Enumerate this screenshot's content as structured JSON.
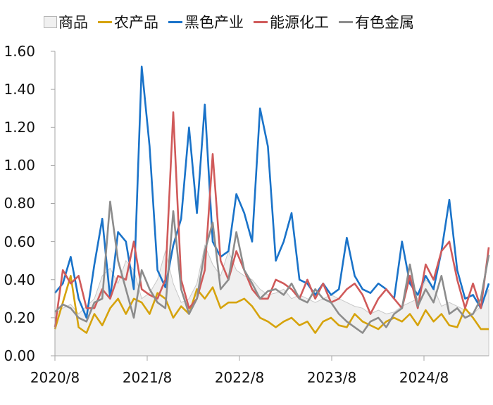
{
  "chart_data": {
    "type": "line",
    "title": "",
    "xlabel": "",
    "ylabel": "",
    "ylim": [
      0,
      1.6
    ],
    "yticks": [
      "0.00",
      "0.20",
      "0.40",
      "0.60",
      "0.80",
      "1.00",
      "1.20",
      "1.40",
      "1.60"
    ],
    "xticks": [
      "2020/8",
      "2021/8",
      "2022/8",
      "2023/8",
      "2024/8"
    ],
    "grid": false,
    "legend_position": "top",
    "legend": [
      "商品",
      "农产品",
      "黑色产业",
      "能源化工",
      "有色金属"
    ],
    "x": [
      "2020/08",
      "2020/09",
      "2020/10",
      "2020/11",
      "2020/12",
      "2021/01",
      "2021/02",
      "2021/03",
      "2021/04",
      "2021/05",
      "2021/06",
      "2021/07",
      "2021/08",
      "2021/09",
      "2021/10",
      "2021/11",
      "2021/12",
      "2022/01",
      "2022/02",
      "2022/03",
      "2022/04",
      "2022/05",
      "2022/06",
      "2022/07",
      "2022/08",
      "2022/09",
      "2022/10",
      "2022/11",
      "2022/12",
      "2023/01",
      "2023/02",
      "2023/03",
      "2023/04",
      "2023/05",
      "2023/06",
      "2023/07",
      "2023/08",
      "2023/09",
      "2023/10",
      "2023/11",
      "2023/12",
      "2024/01",
      "2024/02",
      "2024/03",
      "2024/04",
      "2024/05",
      "2024/06",
      "2024/07",
      "2024/08",
      "2024/09",
      "2024/10",
      "2024/11",
      "2024/12",
      "2025/01",
      "2025/02",
      "2025/03"
    ],
    "series": [
      {
        "name": "商品",
        "type": "area",
        "color": "#f0f0f0",
        "values": [
          0.22,
          0.25,
          0.27,
          0.22,
          0.26,
          0.3,
          0.42,
          0.46,
          0.38,
          0.5,
          0.45,
          0.3,
          0.33,
          0.4,
          0.55,
          0.38,
          0.28,
          0.3,
          0.38,
          0.58,
          0.48,
          0.42,
          0.55,
          0.45,
          0.42,
          0.4,
          0.35,
          0.32,
          0.33,
          0.35,
          0.3,
          0.32,
          0.3,
          0.28,
          0.3,
          0.32,
          0.3,
          0.28,
          0.26,
          0.25,
          0.22,
          0.24,
          0.22,
          0.23,
          0.26,
          0.28,
          0.3,
          0.4,
          0.36,
          0.26,
          0.28,
          0.26,
          0.24,
          0.22,
          0.26,
          0.35
        ]
      },
      {
        "name": "农产品",
        "type": "line",
        "color": "#d6a30c",
        "values": [
          0.14,
          0.28,
          0.42,
          0.15,
          0.12,
          0.22,
          0.16,
          0.25,
          0.3,
          0.22,
          0.3,
          0.28,
          0.22,
          0.33,
          0.3,
          0.2,
          0.26,
          0.22,
          0.35,
          0.3,
          0.36,
          0.25,
          0.28,
          0.28,
          0.3,
          0.26,
          0.2,
          0.18,
          0.15,
          0.18,
          0.2,
          0.16,
          0.18,
          0.12,
          0.18,
          0.2,
          0.16,
          0.15,
          0.22,
          0.18,
          0.16,
          0.14,
          0.18,
          0.2,
          0.18,
          0.22,
          0.16,
          0.24,
          0.18,
          0.22,
          0.16,
          0.15,
          0.25,
          0.2,
          0.14,
          0.14
        ]
      },
      {
        "name": "黑色产业",
        "type": "line",
        "color": "#1a73c9",
        "values": [
          0.33,
          0.38,
          0.52,
          0.3,
          0.2,
          0.48,
          0.72,
          0.3,
          0.65,
          0.6,
          0.35,
          1.52,
          1.1,
          0.45,
          0.36,
          0.58,
          0.72,
          1.2,
          0.75,
          1.32,
          0.6,
          0.52,
          0.55,
          0.85,
          0.75,
          0.6,
          1.3,
          1.1,
          0.5,
          0.6,
          0.75,
          0.4,
          0.38,
          0.32,
          0.38,
          0.32,
          0.35,
          0.62,
          0.42,
          0.35,
          0.33,
          0.38,
          0.35,
          0.3,
          0.6,
          0.38,
          0.32,
          0.42,
          0.35,
          0.55,
          0.82,
          0.45,
          0.3,
          0.32,
          0.25,
          0.38
        ]
      },
      {
        "name": "能源化工",
        "type": "line",
        "color": "#d05a5a",
        "values": [
          0.15,
          0.45,
          0.38,
          0.42,
          0.25,
          0.25,
          0.35,
          0.3,
          0.42,
          0.4,
          0.6,
          0.35,
          0.32,
          0.3,
          0.4,
          1.28,
          0.4,
          0.25,
          0.3,
          0.45,
          1.06,
          0.5,
          0.4,
          0.55,
          0.45,
          0.35,
          0.3,
          0.3,
          0.4,
          0.38,
          0.35,
          0.3,
          0.4,
          0.3,
          0.38,
          0.28,
          0.3,
          0.35,
          0.38,
          0.32,
          0.22,
          0.3,
          0.35,
          0.3,
          0.25,
          0.42,
          0.25,
          0.48,
          0.4,
          0.55,
          0.6,
          0.4,
          0.25,
          0.38,
          0.25,
          0.57
        ]
      },
      {
        "name": "有色金属",
        "type": "line",
        "color": "#8c8c8c",
        "values": [
          0.23,
          0.27,
          0.25,
          0.2,
          0.18,
          0.28,
          0.3,
          0.81,
          0.5,
          0.35,
          0.2,
          0.45,
          0.35,
          0.28,
          0.25,
          0.76,
          0.35,
          0.22,
          0.3,
          0.55,
          0.7,
          0.35,
          0.4,
          0.65,
          0.45,
          0.38,
          0.3,
          0.34,
          0.35,
          0.32,
          0.38,
          0.3,
          0.28,
          0.35,
          0.3,
          0.28,
          0.22,
          0.18,
          0.15,
          0.12,
          0.18,
          0.2,
          0.15,
          0.22,
          0.25,
          0.48,
          0.26,
          0.35,
          0.28,
          0.42,
          0.22,
          0.25,
          0.2,
          0.22,
          0.3,
          0.53
        ]
      }
    ]
  }
}
